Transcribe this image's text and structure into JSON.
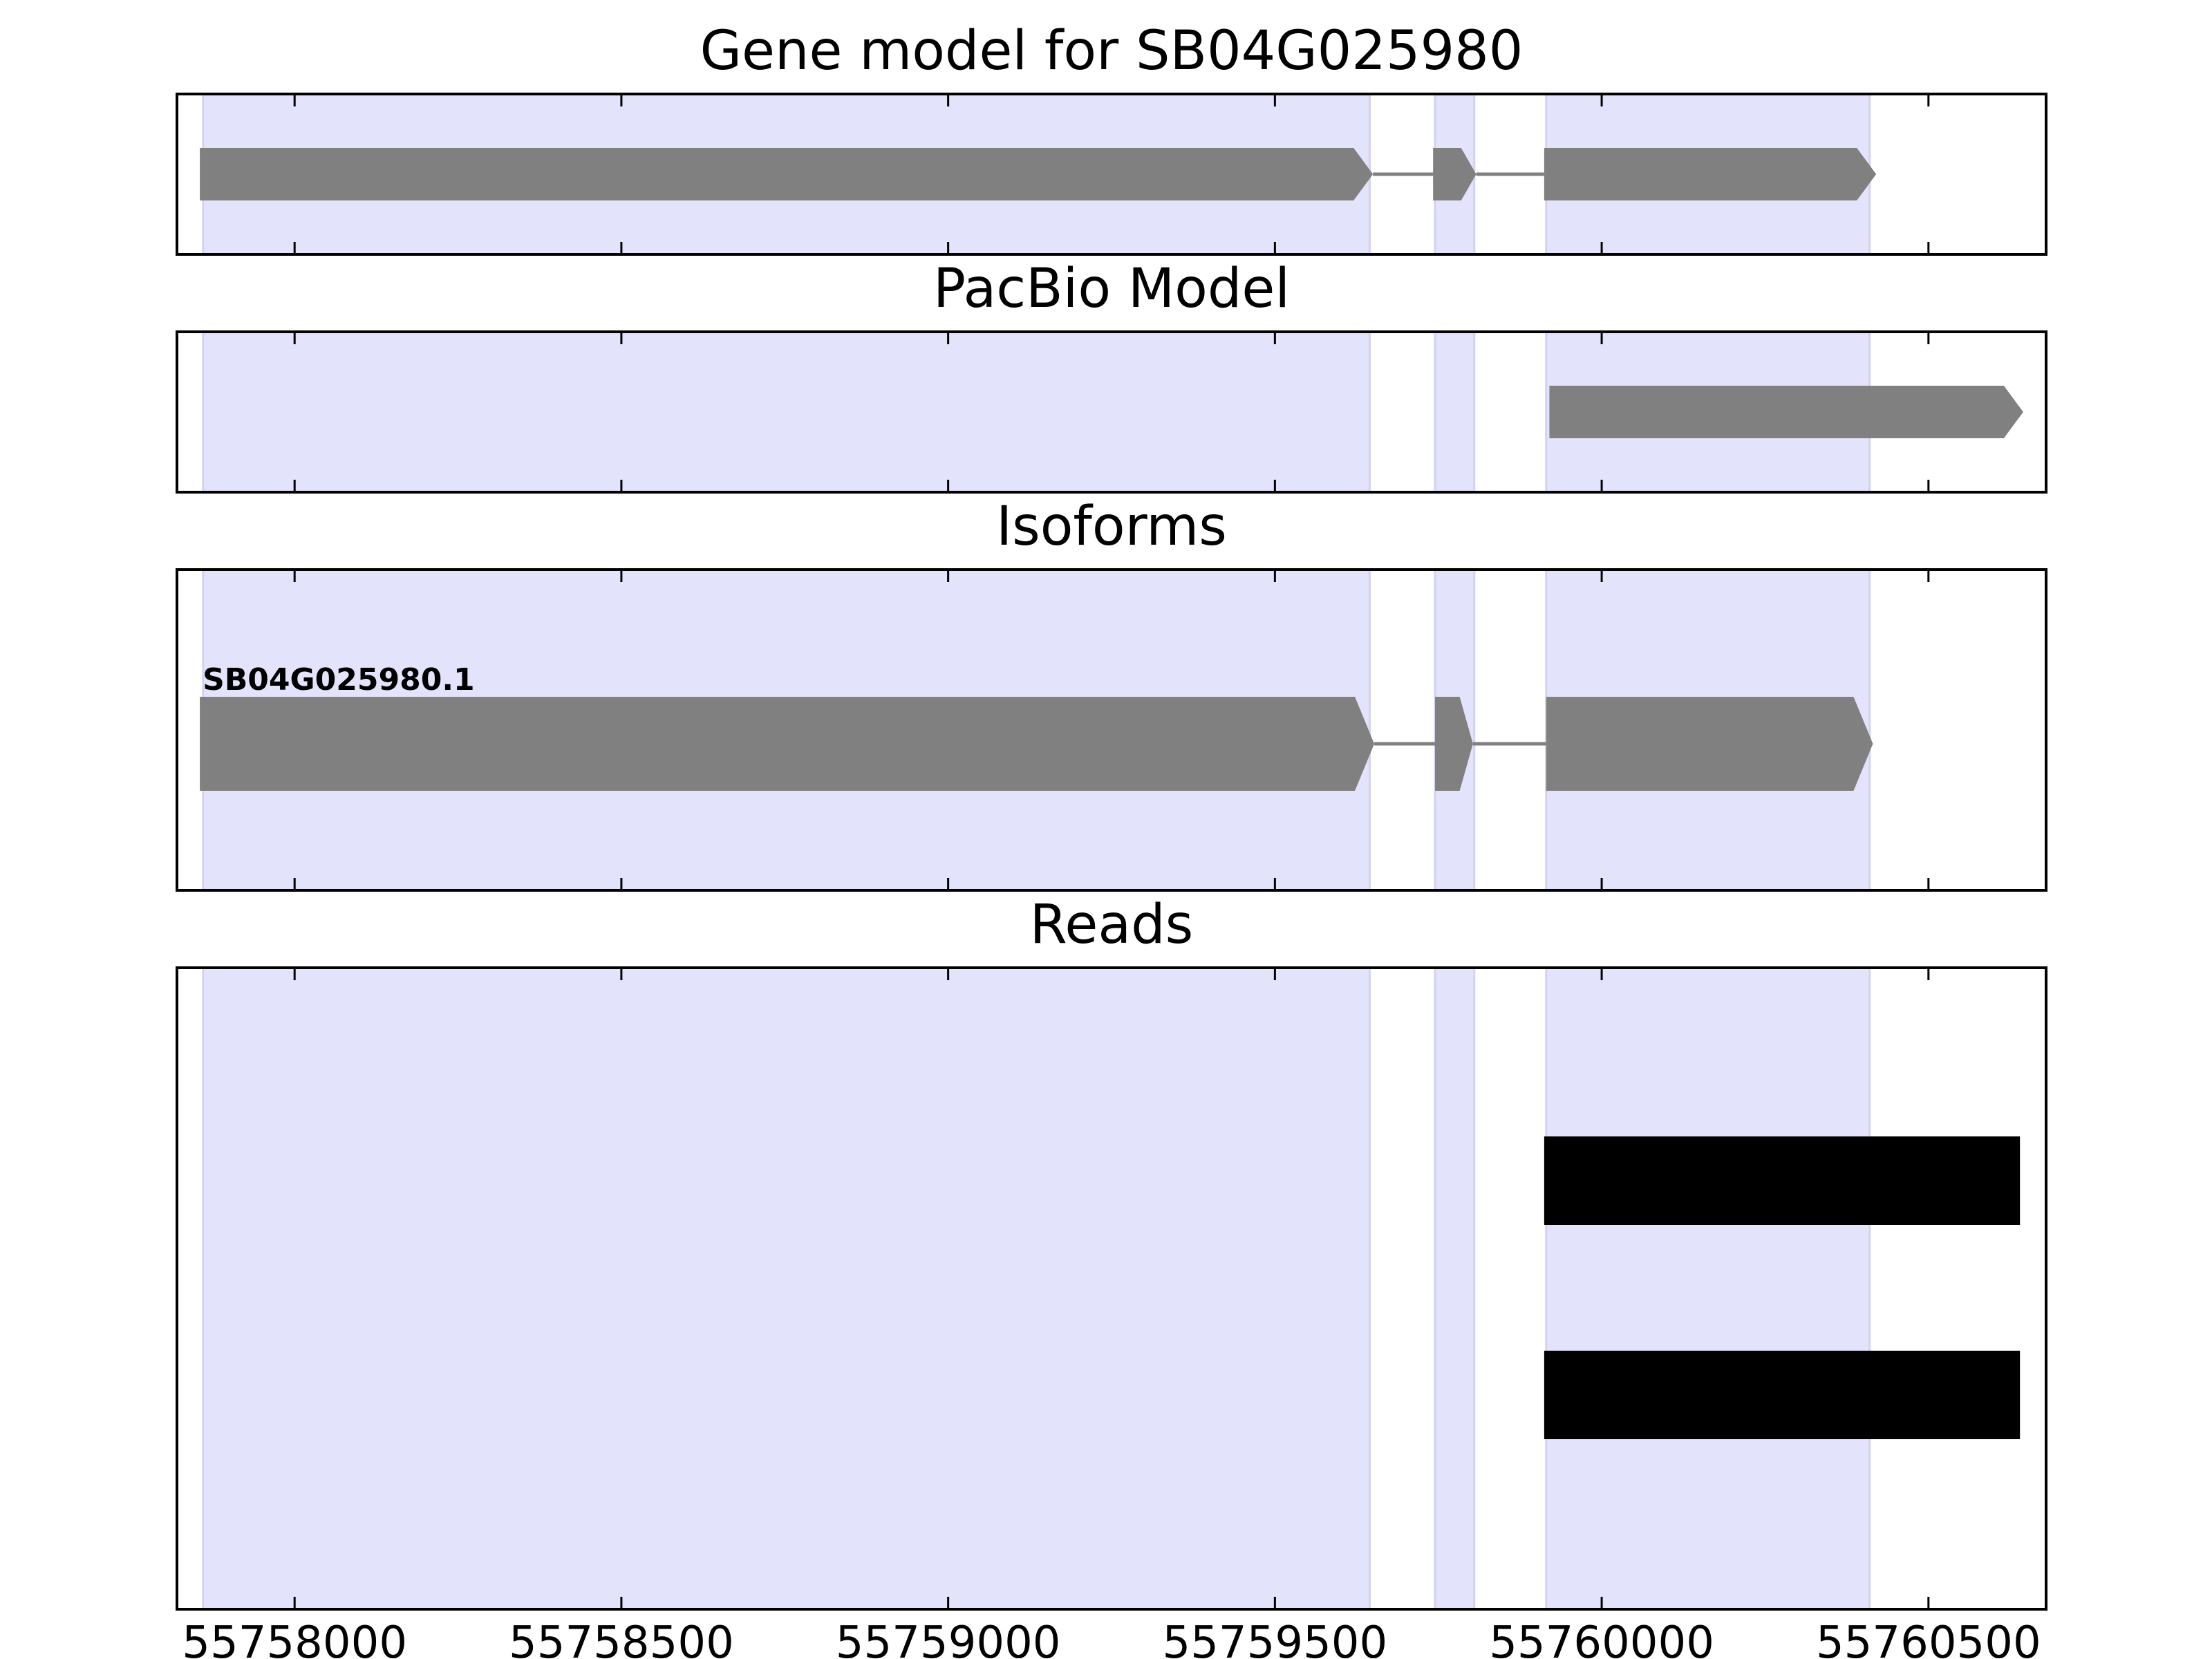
{
  "chart_data": {
    "type": "gene-track",
    "xlim": [
      55757820,
      55760680
    ],
    "xticks": [
      55758000,
      55758500,
      55759000,
      55759500,
      55760000,
      55760500
    ],
    "tick_labels": [
      "55758000",
      "55758500",
      "55759000",
      "55759500",
      "55760000",
      "55760500"
    ],
    "highlight_regions": [
      {
        "start": 55757860,
        "end": 55759645
      },
      {
        "start": 55759745,
        "end": 55759805
      },
      {
        "start": 55759915,
        "end": 55760410
      }
    ],
    "panels": [
      {
        "title": "Gene model for SB04G025980",
        "features": [
          {
            "kind": "exon",
            "start": 55757855,
            "end": 55759650
          },
          {
            "kind": "exon",
            "start": 55759742,
            "end": 55759808
          },
          {
            "kind": "exon",
            "start": 55759912,
            "end": 55760420
          }
        ]
      },
      {
        "title": "PacBio Model",
        "features": [
          {
            "kind": "exon",
            "start": 55759920,
            "end": 55760645
          }
        ]
      },
      {
        "title": "Isoforms",
        "label": "SB04G025980.1",
        "features": [
          {
            "kind": "exon",
            "start": 55757855,
            "end": 55759652
          },
          {
            "kind": "exon",
            "start": 55759745,
            "end": 55759803
          },
          {
            "kind": "exon",
            "start": 55759915,
            "end": 55760415
          }
        ]
      },
      {
        "title": "Reads",
        "reads": [
          {
            "start": 55759912,
            "end": 55760640
          },
          {
            "start": 55759912,
            "end": 55760640
          }
        ]
      }
    ]
  },
  "colors": {
    "highlight": "#e3e3fc",
    "exon": "#808080",
    "intron": "#808080",
    "read": "#000000",
    "frame": "#000000"
  }
}
